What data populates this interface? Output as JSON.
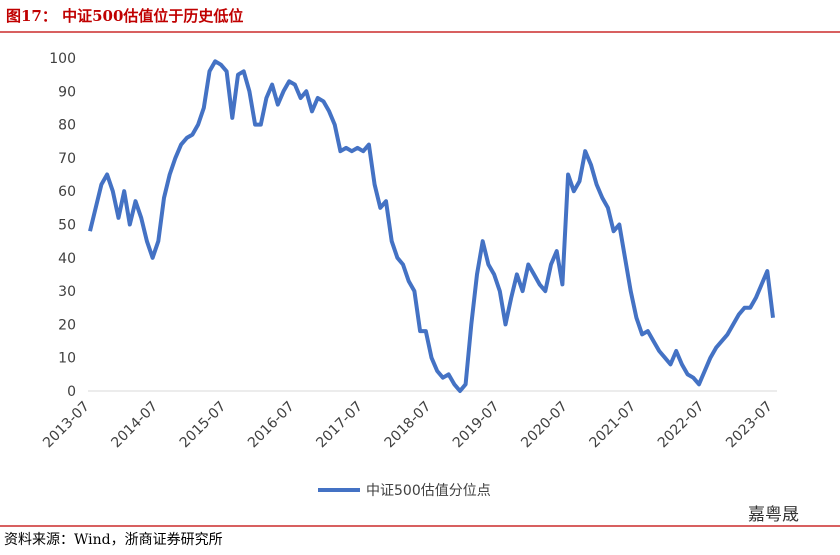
{
  "chart_data": {
    "type": "line",
    "title": "图17： 中证500估值位于历史低位",
    "x": [
      "2013-07",
      "2013-08",
      "2013-09",
      "2013-10",
      "2013-11",
      "2013-12",
      "2014-01",
      "2014-02",
      "2014-03",
      "2014-04",
      "2014-05",
      "2014-06",
      "2014-07",
      "2014-08",
      "2014-09",
      "2014-10",
      "2014-11",
      "2014-12",
      "2015-01",
      "2015-02",
      "2015-03",
      "2015-04",
      "2015-05",
      "2015-06",
      "2015-07",
      "2015-08",
      "2015-09",
      "2015-10",
      "2015-11",
      "2015-12",
      "2016-01",
      "2016-02",
      "2016-03",
      "2016-04",
      "2016-05",
      "2016-06",
      "2016-07",
      "2016-08",
      "2016-09",
      "2016-10",
      "2016-11",
      "2016-12",
      "2017-01",
      "2017-02",
      "2017-03",
      "2017-04",
      "2017-05",
      "2017-06",
      "2017-07",
      "2017-08",
      "2017-09",
      "2017-10",
      "2017-11",
      "2017-12",
      "2018-01",
      "2018-02",
      "2018-03",
      "2018-04",
      "2018-05",
      "2018-06",
      "2018-07",
      "2018-08",
      "2018-09",
      "2018-10",
      "2018-11",
      "2018-12",
      "2019-01",
      "2019-02",
      "2019-03",
      "2019-04",
      "2019-05",
      "2019-06",
      "2019-07",
      "2019-08",
      "2019-09",
      "2019-10",
      "2019-11",
      "2019-12",
      "2020-01",
      "2020-02",
      "2020-03",
      "2020-04",
      "2020-05",
      "2020-06",
      "2020-07",
      "2020-08",
      "2020-09",
      "2020-10",
      "2020-11",
      "2020-12",
      "2021-01",
      "2021-02",
      "2021-03",
      "2021-04",
      "2021-05",
      "2021-06",
      "2021-07",
      "2021-08",
      "2021-09",
      "2021-10",
      "2021-11",
      "2021-12",
      "2022-01",
      "2022-02",
      "2022-03",
      "2022-04",
      "2022-05",
      "2022-06",
      "2022-07",
      "2022-08",
      "2022-09",
      "2022-10",
      "2022-11",
      "2022-12",
      "2023-01",
      "2023-02",
      "2023-03",
      "2023-04",
      "2023-05",
      "2023-06",
      "2023-07"
    ],
    "series": [
      {
        "name": "中证500估值分位点",
        "color": "#4472c4",
        "values": [
          48,
          55,
          62,
          65,
          60,
          52,
          60,
          50,
          57,
          52,
          45,
          40,
          45,
          58,
          65,
          70,
          74,
          76,
          77,
          80,
          85,
          96,
          99,
          98,
          96,
          82,
          95,
          96,
          90,
          80,
          80,
          88,
          92,
          86,
          90,
          93,
          92,
          88,
          90,
          84,
          88,
          87,
          84,
          80,
          72,
          73,
          72,
          73,
          72,
          74,
          62,
          55,
          57,
          45,
          40,
          38,
          33,
          30,
          18,
          18,
          10,
          6,
          4,
          5,
          2,
          0,
          2,
          20,
          35,
          45,
          38,
          35,
          30,
          20,
          28,
          35,
          30,
          38,
          35,
          32,
          30,
          38,
          42,
          32,
          65,
          60,
          63,
          72,
          68,
          62,
          58,
          55,
          48,
          50,
          40,
          30,
          22,
          17,
          18,
          15,
          12,
          10,
          8,
          12,
          8,
          5,
          4,
          2,
          6,
          10,
          13,
          15,
          17,
          20,
          23,
          25,
          25,
          28,
          32,
          36,
          22
        ]
      }
    ],
    "ylim": [
      0,
      100
    ],
    "yticks": [
      0,
      10,
      20,
      30,
      40,
      50,
      60,
      70,
      80,
      90,
      100
    ],
    "source": "资料来源：Wind，浙商证券研究所",
    "watermark": "嘉粤晟"
  }
}
